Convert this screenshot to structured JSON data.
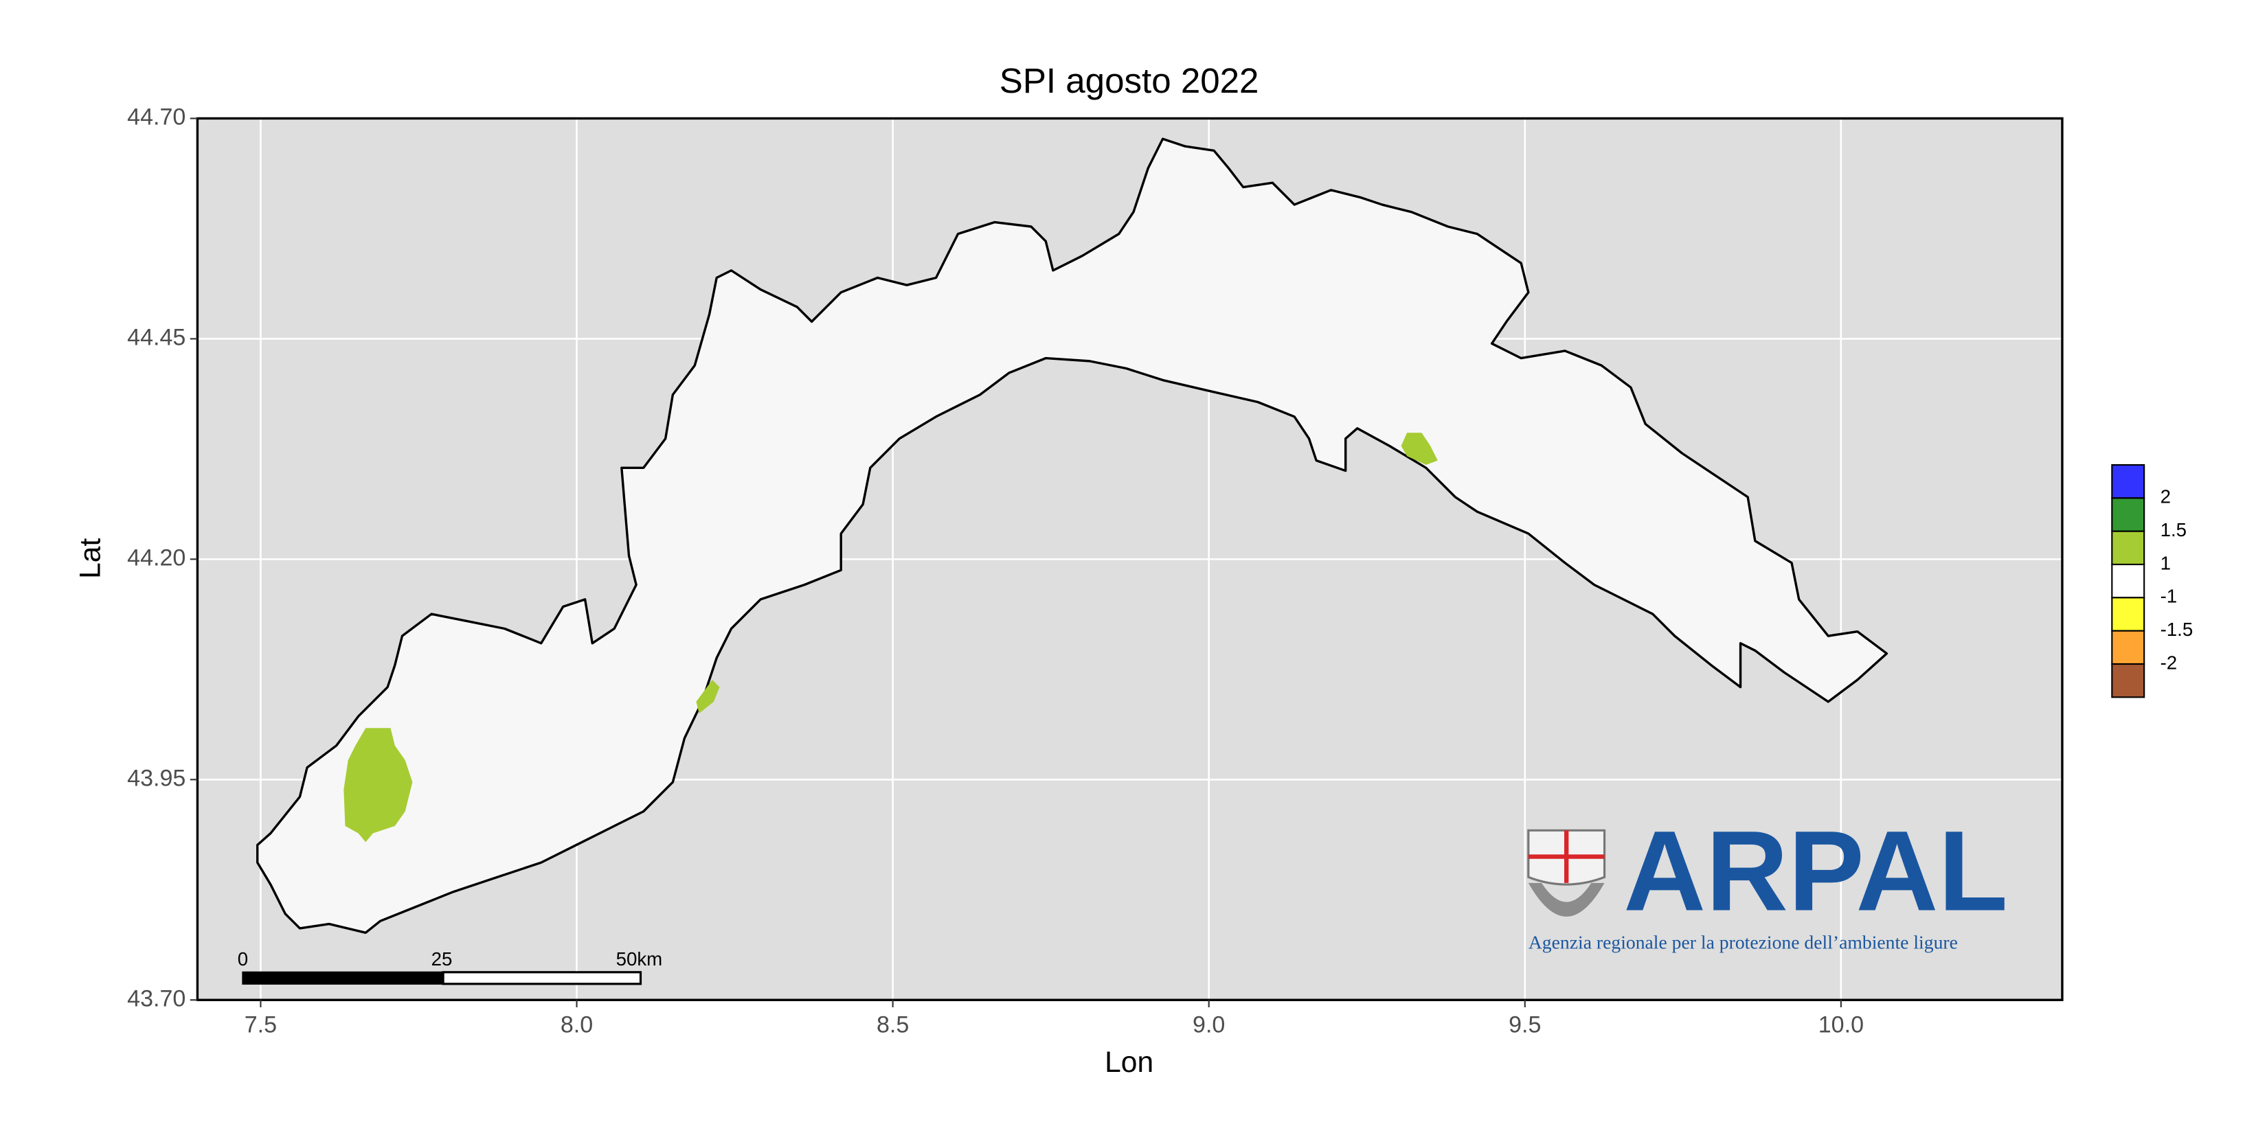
{
  "chart_data": {
    "type": "map",
    "title": "SPI agosto 2022",
    "x_label": "Lon",
    "y_label": "Lat",
    "xlim": [
      7.4,
      10.35
    ],
    "ylim": [
      43.7,
      44.7
    ],
    "xticks": [
      7.5,
      {
        "value": 8,
        "label": "8.0"
      },
      8.5,
      {
        "value": 9,
        "label": "9.0"
      },
      9.5,
      {
        "value": 10,
        "label": "10.0"
      }
    ],
    "yticks": [
      {
        "value": 43.7,
        "label": "43.70"
      },
      43.95,
      {
        "value": 44.2,
        "label": "44.20"
      },
      44.45,
      {
        "value": 44.7,
        "label": "44.70"
      }
    ],
    "grid": true,
    "legend": {
      "position": "right",
      "colors": [
        "#3333ff",
        "#339933",
        "#a6cc33",
        "#ffffff",
        "#ffff33",
        "#ffa533",
        "#a65933"
      ],
      "breaks": [
        2,
        1.5,
        1,
        -1,
        -1.5,
        -2
      ]
    },
    "scale_bar": {
      "labels": [
        "0",
        "25",
        "50km"
      ]
    }
  },
  "logo": {
    "name": "ARPAL",
    "tagline": "Agenzia regionale per la protezione dell’ambiente ligure"
  }
}
